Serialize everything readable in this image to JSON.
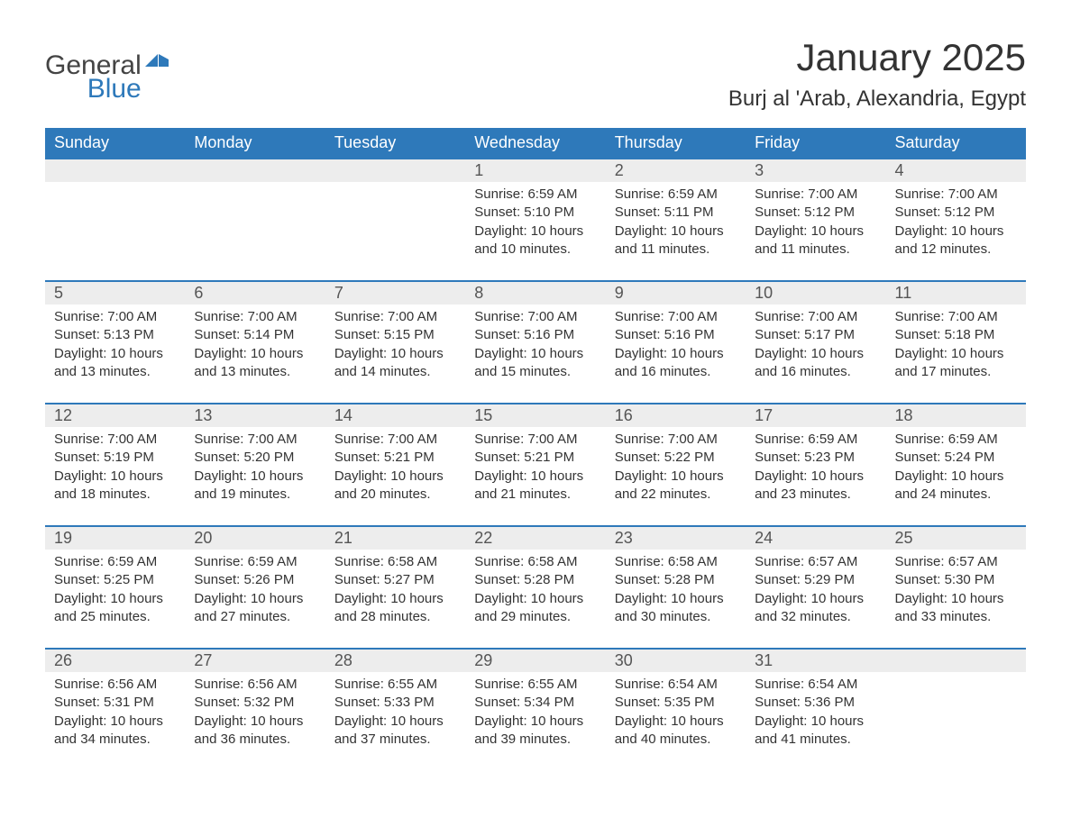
{
  "brand": {
    "general": "General",
    "blue": "Blue",
    "accent_color": "#2e79ba"
  },
  "title": "January 2025",
  "location": "Burj al 'Arab, Alexandria, Egypt",
  "colors": {
    "header_bg": "#2e79ba",
    "header_text": "#ffffff",
    "daynum_bg": "#ededed",
    "daynum_border": "#2e79ba",
    "body_text": "#333333",
    "page_bg": "#ffffff"
  },
  "fonts": {
    "family": "Arial, Helvetica, sans-serif",
    "title_size_pt": 32,
    "location_size_pt": 18,
    "header_size_pt": 14,
    "daynum_size_pt": 14,
    "detail_size_pt": 11
  },
  "weekdays": [
    "Sunday",
    "Monday",
    "Tuesday",
    "Wednesday",
    "Thursday",
    "Friday",
    "Saturday"
  ],
  "weeks": [
    [
      {
        "day": "",
        "lines": []
      },
      {
        "day": "",
        "lines": []
      },
      {
        "day": "",
        "lines": []
      },
      {
        "day": "1",
        "lines": [
          "Sunrise: 6:59 AM",
          "Sunset: 5:10 PM",
          "Daylight: 10 hours",
          "and 10 minutes."
        ]
      },
      {
        "day": "2",
        "lines": [
          "Sunrise: 6:59 AM",
          "Sunset: 5:11 PM",
          "Daylight: 10 hours",
          "and 11 minutes."
        ]
      },
      {
        "day": "3",
        "lines": [
          "Sunrise: 7:00 AM",
          "Sunset: 5:12 PM",
          "Daylight: 10 hours",
          "and 11 minutes."
        ]
      },
      {
        "day": "4",
        "lines": [
          "Sunrise: 7:00 AM",
          "Sunset: 5:12 PM",
          "Daylight: 10 hours",
          "and 12 minutes."
        ]
      }
    ],
    [
      {
        "day": "5",
        "lines": [
          "Sunrise: 7:00 AM",
          "Sunset: 5:13 PM",
          "Daylight: 10 hours",
          "and 13 minutes."
        ]
      },
      {
        "day": "6",
        "lines": [
          "Sunrise: 7:00 AM",
          "Sunset: 5:14 PM",
          "Daylight: 10 hours",
          "and 13 minutes."
        ]
      },
      {
        "day": "7",
        "lines": [
          "Sunrise: 7:00 AM",
          "Sunset: 5:15 PM",
          "Daylight: 10 hours",
          "and 14 minutes."
        ]
      },
      {
        "day": "8",
        "lines": [
          "Sunrise: 7:00 AM",
          "Sunset: 5:16 PM",
          "Daylight: 10 hours",
          "and 15 minutes."
        ]
      },
      {
        "day": "9",
        "lines": [
          "Sunrise: 7:00 AM",
          "Sunset: 5:16 PM",
          "Daylight: 10 hours",
          "and 16 minutes."
        ]
      },
      {
        "day": "10",
        "lines": [
          "Sunrise: 7:00 AM",
          "Sunset: 5:17 PM",
          "Daylight: 10 hours",
          "and 16 minutes."
        ]
      },
      {
        "day": "11",
        "lines": [
          "Sunrise: 7:00 AM",
          "Sunset: 5:18 PM",
          "Daylight: 10 hours",
          "and 17 minutes."
        ]
      }
    ],
    [
      {
        "day": "12",
        "lines": [
          "Sunrise: 7:00 AM",
          "Sunset: 5:19 PM",
          "Daylight: 10 hours",
          "and 18 minutes."
        ]
      },
      {
        "day": "13",
        "lines": [
          "Sunrise: 7:00 AM",
          "Sunset: 5:20 PM",
          "Daylight: 10 hours",
          "and 19 minutes."
        ]
      },
      {
        "day": "14",
        "lines": [
          "Sunrise: 7:00 AM",
          "Sunset: 5:21 PM",
          "Daylight: 10 hours",
          "and 20 minutes."
        ]
      },
      {
        "day": "15",
        "lines": [
          "Sunrise: 7:00 AM",
          "Sunset: 5:21 PM",
          "Daylight: 10 hours",
          "and 21 minutes."
        ]
      },
      {
        "day": "16",
        "lines": [
          "Sunrise: 7:00 AM",
          "Sunset: 5:22 PM",
          "Daylight: 10 hours",
          "and 22 minutes."
        ]
      },
      {
        "day": "17",
        "lines": [
          "Sunrise: 6:59 AM",
          "Sunset: 5:23 PM",
          "Daylight: 10 hours",
          "and 23 minutes."
        ]
      },
      {
        "day": "18",
        "lines": [
          "Sunrise: 6:59 AM",
          "Sunset: 5:24 PM",
          "Daylight: 10 hours",
          "and 24 minutes."
        ]
      }
    ],
    [
      {
        "day": "19",
        "lines": [
          "Sunrise: 6:59 AM",
          "Sunset: 5:25 PM",
          "Daylight: 10 hours",
          "and 25 minutes."
        ]
      },
      {
        "day": "20",
        "lines": [
          "Sunrise: 6:59 AM",
          "Sunset: 5:26 PM",
          "Daylight: 10 hours",
          "and 27 minutes."
        ]
      },
      {
        "day": "21",
        "lines": [
          "Sunrise: 6:58 AM",
          "Sunset: 5:27 PM",
          "Daylight: 10 hours",
          "and 28 minutes."
        ]
      },
      {
        "day": "22",
        "lines": [
          "Sunrise: 6:58 AM",
          "Sunset: 5:28 PM",
          "Daylight: 10 hours",
          "and 29 minutes."
        ]
      },
      {
        "day": "23",
        "lines": [
          "Sunrise: 6:58 AM",
          "Sunset: 5:28 PM",
          "Daylight: 10 hours",
          "and 30 minutes."
        ]
      },
      {
        "day": "24",
        "lines": [
          "Sunrise: 6:57 AM",
          "Sunset: 5:29 PM",
          "Daylight: 10 hours",
          "and 32 minutes."
        ]
      },
      {
        "day": "25",
        "lines": [
          "Sunrise: 6:57 AM",
          "Sunset: 5:30 PM",
          "Daylight: 10 hours",
          "and 33 minutes."
        ]
      }
    ],
    [
      {
        "day": "26",
        "lines": [
          "Sunrise: 6:56 AM",
          "Sunset: 5:31 PM",
          "Daylight: 10 hours",
          "and 34 minutes."
        ]
      },
      {
        "day": "27",
        "lines": [
          "Sunrise: 6:56 AM",
          "Sunset: 5:32 PM",
          "Daylight: 10 hours",
          "and 36 minutes."
        ]
      },
      {
        "day": "28",
        "lines": [
          "Sunrise: 6:55 AM",
          "Sunset: 5:33 PM",
          "Daylight: 10 hours",
          "and 37 minutes."
        ]
      },
      {
        "day": "29",
        "lines": [
          "Sunrise: 6:55 AM",
          "Sunset: 5:34 PM",
          "Daylight: 10 hours",
          "and 39 minutes."
        ]
      },
      {
        "day": "30",
        "lines": [
          "Sunrise: 6:54 AM",
          "Sunset: 5:35 PM",
          "Daylight: 10 hours",
          "and 40 minutes."
        ]
      },
      {
        "day": "31",
        "lines": [
          "Sunrise: 6:54 AM",
          "Sunset: 5:36 PM",
          "Daylight: 10 hours",
          "and 41 minutes."
        ]
      },
      {
        "day": "",
        "lines": []
      }
    ]
  ]
}
